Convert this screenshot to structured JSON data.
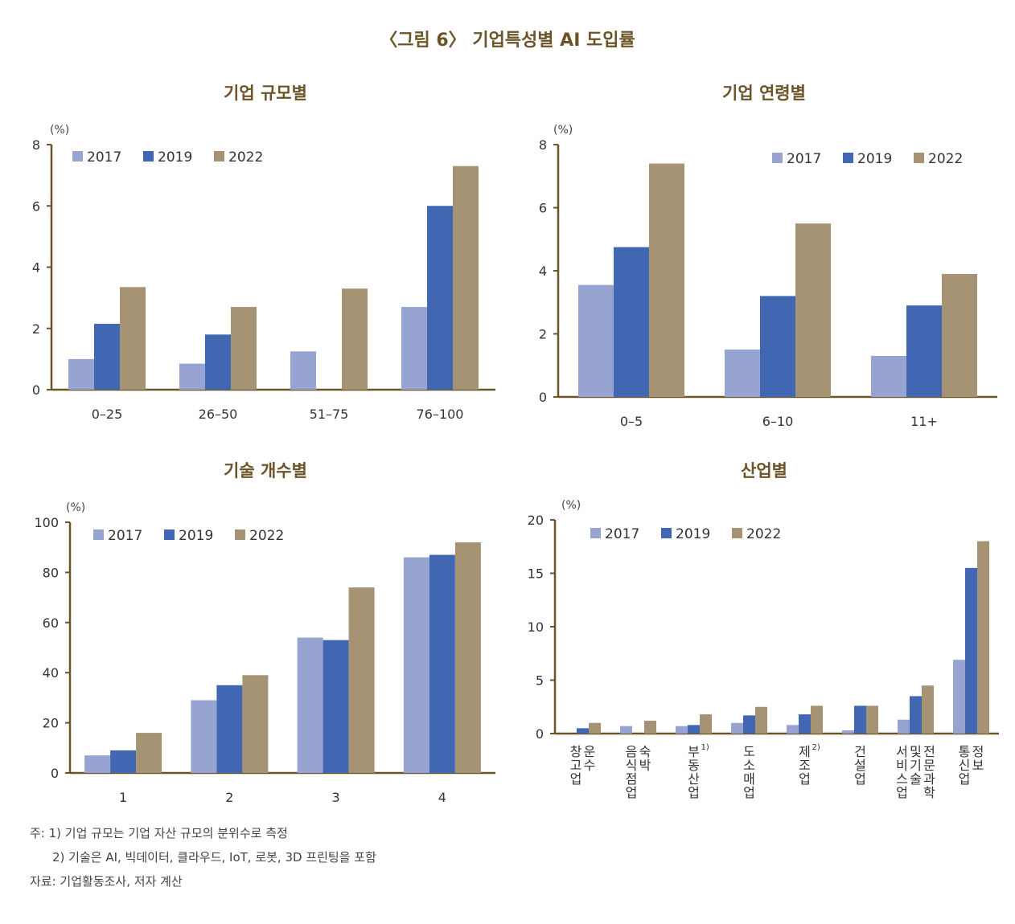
{
  "figure_title": "〈그림 6〉 기업특성별 AI 도입률",
  "colors": {
    "2017": "#97a3d0",
    "2019": "#4267b2",
    "2022": "#a69373",
    "axis": "#6b5428",
    "title": "#6b5428"
  },
  "chart_data": [
    {
      "id": "size",
      "type": "bar",
      "title": "기업 규모별",
      "unit": "(%)",
      "legend": [
        "2017",
        "2019",
        "2022"
      ],
      "categories": [
        "0–25",
        "26–50",
        "51–75",
        "76–100"
      ],
      "ylim": [
        0,
        8
      ],
      "yticks": [
        0,
        2,
        4,
        6,
        8
      ],
      "series": [
        {
          "name": "2017",
          "values": [
            1.0,
            0.85,
            1.25,
            2.7
          ]
        },
        {
          "name": "2019",
          "values": [
            2.15,
            1.8,
            0,
            6.0
          ]
        },
        {
          "name": "2022",
          "values": [
            3.35,
            2.7,
            3.3,
            7.3
          ]
        }
      ]
    },
    {
      "id": "age",
      "type": "bar",
      "title": "기업 연령별",
      "unit": "(%)",
      "legend": [
        "2017",
        "2019",
        "2022"
      ],
      "categories": [
        "0–5",
        "6–10",
        "11+"
      ],
      "ylim": [
        0,
        8
      ],
      "yticks": [
        0,
        2,
        4,
        6,
        8
      ],
      "series": [
        {
          "name": "2017",
          "values": [
            3.55,
            1.5,
            1.3
          ]
        },
        {
          "name": "2019",
          "values": [
            4.75,
            3.2,
            2.9
          ]
        },
        {
          "name": "2022",
          "values": [
            7.4,
            5.5,
            3.9
          ]
        }
      ]
    },
    {
      "id": "tech",
      "type": "bar",
      "title": "기술 개수별",
      "unit": "(%)",
      "legend": [
        "2017",
        "2019",
        "2022"
      ],
      "categories": [
        "1",
        "2",
        "3",
        "4"
      ],
      "ylim": [
        0,
        100
      ],
      "yticks": [
        0,
        20,
        40,
        60,
        80,
        100
      ],
      "series": [
        {
          "name": "2017",
          "values": [
            7,
            29,
            54,
            86
          ]
        },
        {
          "name": "2019",
          "values": [
            9,
            35,
            53,
            87
          ]
        },
        {
          "name": "2022",
          "values": [
            16,
            39,
            74,
            92
          ]
        }
      ]
    },
    {
      "id": "industry",
      "type": "bar",
      "title": "산업별",
      "unit": "(%)",
      "legend": [
        "2017",
        "2019",
        "2022"
      ],
      "categories": [
        "창고 운수 업",
        "음식 숙박 점업",
        "부동산업",
        "도소매업",
        "제조업",
        "건설업",
        "전문과학 및 기술 서비스업",
        "통신업 정보"
      ],
      "category_lines": [
        [
          "창",
          "고",
          "업",
          "운",
          "수"
        ],
        [
          "음",
          "식",
          "점",
          "숙",
          "박",
          "업"
        ],
        [
          "부",
          "동",
          "산",
          "업"
        ],
        [
          "도",
          "소",
          "매",
          "업"
        ],
        [
          "제",
          "조",
          "업"
        ],
        [
          "건",
          "설",
          "업"
        ],
        [
          "서",
          "비",
          "스",
          "업",
          "전",
          "문",
          "및",
          "기",
          "술",
          "과",
          "학"
        ],
        [
          "통",
          "신",
          "업",
          "정",
          "보"
        ]
      ],
      "superscripts": {
        "2": "1)",
        "4": "2)"
      },
      "ylim": [
        0,
        20
      ],
      "yticks": [
        0,
        5,
        10,
        15,
        20
      ],
      "series": [
        {
          "name": "2017",
          "values": [
            0,
            0.7,
            0.7,
            1.0,
            0.8,
            0.3,
            1.3,
            6.9
          ]
        },
        {
          "name": "2019",
          "values": [
            0.5,
            0,
            0.8,
            1.7,
            1.8,
            2.6,
            3.5,
            15.5
          ]
        },
        {
          "name": "2022",
          "values": [
            1.0,
            1.2,
            1.8,
            2.5,
            2.6,
            2.6,
            4.5,
            18.0
          ]
        }
      ]
    }
  ],
  "footnotes": {
    "note1": "주: 1) 기업 규모는 기업 자산 규모의 분위수로 측정",
    "note2": "2) 기술은 AI, 빅데이터, 클라우드, IoT, 로봇, 3D 프린팅을 포함",
    "source": "자료: 기업활동조사, 저자 계산"
  }
}
